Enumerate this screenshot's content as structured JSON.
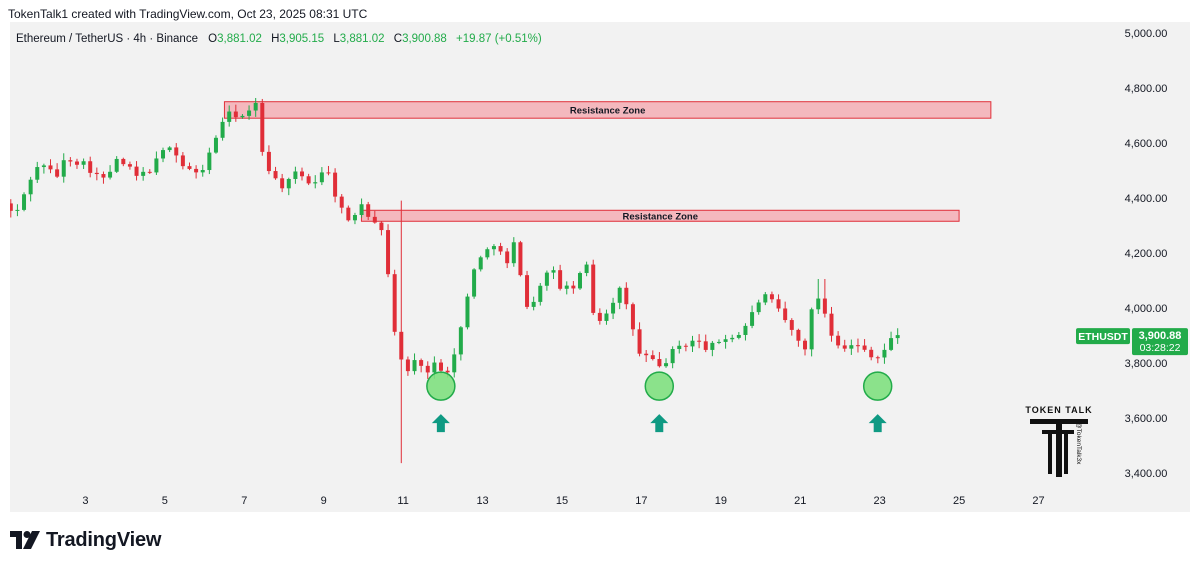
{
  "header": {
    "credit": "TokenTalk1 created with TradingView.com, Oct 23, 2025 08:31 UTC"
  },
  "legend": {
    "symbol": "Ethereum / TetherUS · 4h · Binance",
    "o_label": "O",
    "o_value": "3,881.02",
    "h_label": "H",
    "h_value": "3,905.15",
    "l_label": "L",
    "l_value": "3,881.02",
    "c_label": "C",
    "c_value": "3,900.88",
    "change": "+19.87 (+0.51%)"
  },
  "price_tag": {
    "ticker": "ETHUSDT",
    "price": "3,900.88",
    "countdown": "03:28:22"
  },
  "footer": {
    "brand": "TradingView"
  },
  "watermark": {
    "name": "TOKEN TALK",
    "handle": "@TokenTalk3x"
  },
  "colors": {
    "up": "#22ab4a",
    "down": "#e02e38",
    "bg": "#f2f2f2",
    "zone_fill": "#f4b8be",
    "zone_stroke": "#e0303a",
    "circle_fill": "#7fe07f",
    "circle_stroke": "#22ab4a",
    "arrow": "#0f9a83"
  },
  "chart_data": {
    "type": "candlestick",
    "timeframe": "4h",
    "symbol": "ETHUSDT",
    "y_ticks": [
      "5,000.00",
      "4,800.00",
      "4,600.00",
      "4,400.00",
      "4,200.00",
      "4,000.00",
      "3,800.00",
      "3,600.00",
      "3,400.00"
    ],
    "y_tick_values": [
      5000,
      4800,
      4600,
      4400,
      4200,
      4000,
      3800,
      3600,
      3400
    ],
    "ylim": [
      3330,
      5040
    ],
    "x_ticks": [
      "3",
      "5",
      "7",
      "9",
      "11",
      "13",
      "15",
      "17",
      "19",
      "21",
      "23",
      "25",
      "27"
    ],
    "x_tick_days": [
      3,
      5,
      7,
      9,
      11,
      13,
      15,
      17,
      19,
      21,
      23,
      25,
      27
    ],
    "xlim": [
      1.1,
      28.8
    ],
    "resistance_zones": [
      {
        "label": "Resistance Zone",
        "start_day": 6.5,
        "end_day": 25.8,
        "low": 4690,
        "high": 4750
      },
      {
        "label": "Resistance Zone",
        "start_day": 9.95,
        "end_day": 25.0,
        "low": 4315,
        "high": 4355
      }
    ],
    "support_markers": [
      {
        "day": 11.95,
        "price": 3715
      },
      {
        "day": 17.45,
        "price": 3715
      },
      {
        "day": 22.95,
        "price": 3715
      }
    ],
    "last_price": 3900.88,
    "candle_points": [
      [
        1.12,
        4380
      ],
      [
        1.4,
        4330
      ],
      [
        1.8,
        4480
      ],
      [
        2.1,
        4530
      ],
      [
        2.4,
        4470
      ],
      [
        2.7,
        4550
      ],
      [
        3.2,
        4520
      ],
      [
        3.6,
        4460
      ],
      [
        4.0,
        4540
      ],
      [
        4.5,
        4470
      ],
      [
        4.9,
        4520
      ],
      [
        5.3,
        4600
      ],
      [
        5.6,
        4520
      ],
      [
        6.0,
        4480
      ],
      [
        6.3,
        4560
      ],
      [
        6.6,
        4680
      ],
      [
        6.9,
        4710
      ],
      [
        7.2,
        4690
      ],
      [
        7.45,
        4740
      ],
      [
        7.6,
        4580
      ],
      [
        7.9,
        4470
      ],
      [
        8.2,
        4440
      ],
      [
        8.5,
        4490
      ],
      [
        8.9,
        4450
      ],
      [
        9.2,
        4520
      ],
      [
        9.5,
        4400
      ],
      [
        9.8,
        4300
      ],
      [
        10.1,
        4390
      ],
      [
        10.35,
        4330
      ],
      [
        10.55,
        4320
      ],
      [
        10.75,
        4180
      ],
      [
        10.95,
        3920
      ],
      [
        11.05,
        3820
      ],
      [
        11.3,
        3770
      ],
      [
        11.55,
        3820
      ],
      [
        11.8,
        3760
      ],
      [
        12.0,
        3800
      ],
      [
        12.25,
        3770
      ],
      [
        12.5,
        3840
      ],
      [
        12.7,
        3980
      ],
      [
        12.95,
        4150
      ],
      [
        13.2,
        4190
      ],
      [
        13.5,
        4250
      ],
      [
        13.75,
        4140
      ],
      [
        13.95,
        4230
      ],
      [
        14.1,
        4150
      ],
      [
        14.35,
        3960
      ],
      [
        14.6,
        4090
      ],
      [
        14.9,
        4140
      ],
      [
        15.2,
        4060
      ],
      [
        15.5,
        4080
      ],
      [
        15.8,
        4160
      ],
      [
        16.0,
        3940
      ],
      [
        16.3,
        3990
      ],
      [
        16.6,
        4070
      ],
      [
        16.9,
        3960
      ],
      [
        17.1,
        3830
      ],
      [
        17.35,
        3820
      ],
      [
        17.6,
        3780
      ],
      [
        17.85,
        3820
      ],
      [
        18.1,
        3860
      ],
      [
        18.5,
        3880
      ],
      [
        18.9,
        3850
      ],
      [
        19.2,
        3890
      ],
      [
        19.6,
        3900
      ],
      [
        19.9,
        3960
      ],
      [
        20.2,
        4050
      ],
      [
        20.5,
        4010
      ],
      [
        20.8,
        3950
      ],
      [
        21.1,
        3880
      ],
      [
        21.3,
        3860
      ],
      [
        21.55,
        4060
      ],
      [
        21.75,
        4000
      ],
      [
        22.0,
        3890
      ],
      [
        22.3,
        3860
      ],
      [
        22.6,
        3860
      ],
      [
        22.9,
        3840
      ],
      [
        23.1,
        3820
      ],
      [
        23.3,
        3850
      ],
      [
        23.55,
        3900
      ]
    ]
  }
}
